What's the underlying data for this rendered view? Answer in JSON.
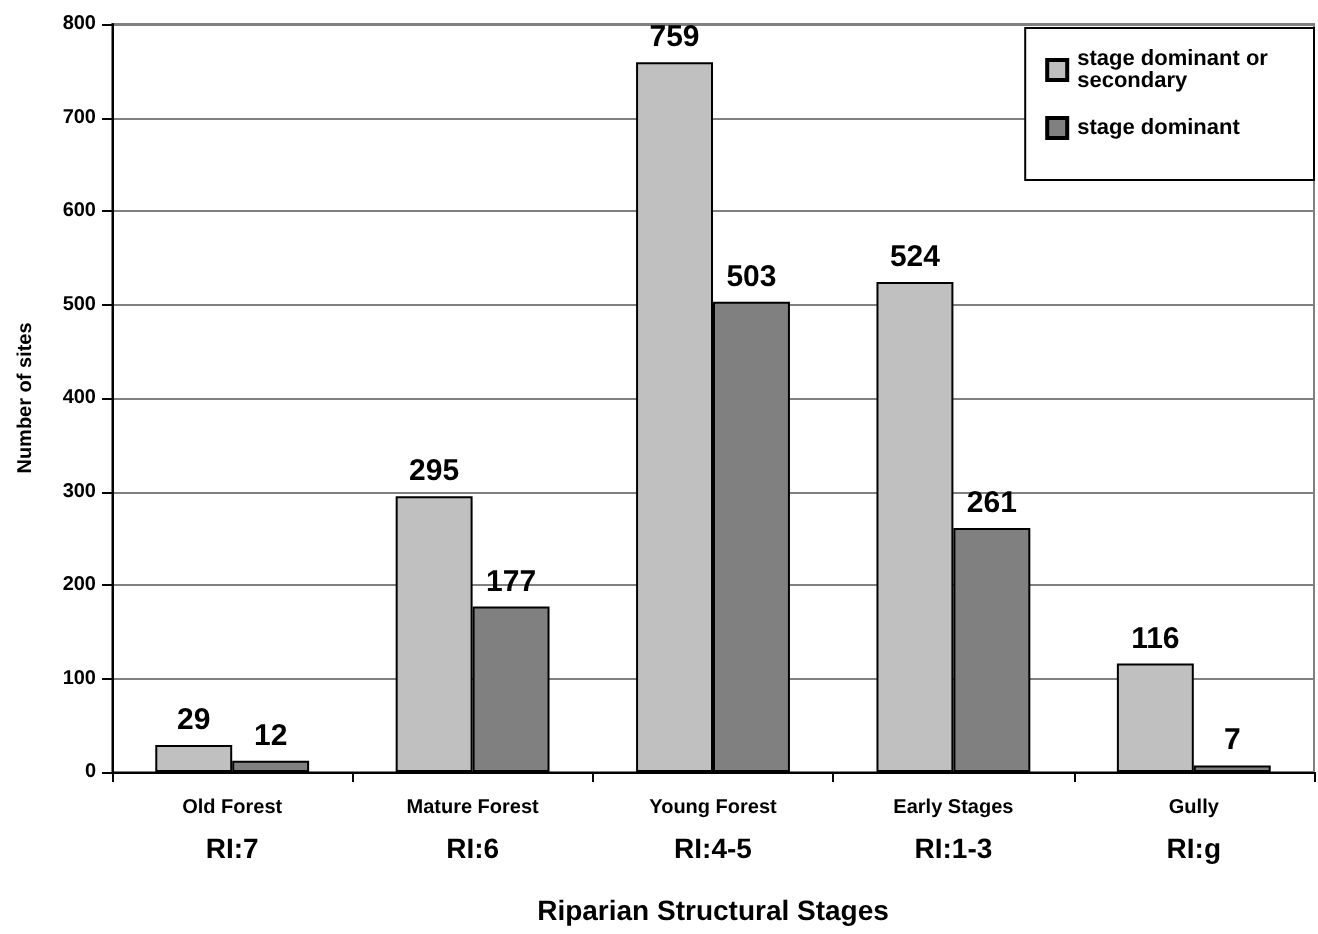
{
  "chart_data": {
    "type": "bar",
    "xlabel": "Riparian Structural Stages",
    "ylabel": "Number of sites",
    "categories": [
      "Old Forest\nRI:7",
      "Mature Forest\nRI:6",
      "Young Forest\nRI:4-5",
      "Early Stages\nRI:1-3",
      "Gully\nRI:g"
    ],
    "series": [
      {
        "name": "stage dominant or secondary",
        "color": "#c0c0c0",
        "values": [
          29,
          295,
          759,
          524,
          116
        ]
      },
      {
        "name": "stage dominant",
        "color": "#808080",
        "values": [
          12,
          177,
          503,
          261,
          7
        ]
      }
    ],
    "ylim": [
      0,
      800
    ],
    "yticks": [
      0,
      100,
      200,
      300,
      400,
      500,
      600,
      700,
      800
    ],
    "grid": "y",
    "legend": "top right",
    "data_labels": true
  }
}
